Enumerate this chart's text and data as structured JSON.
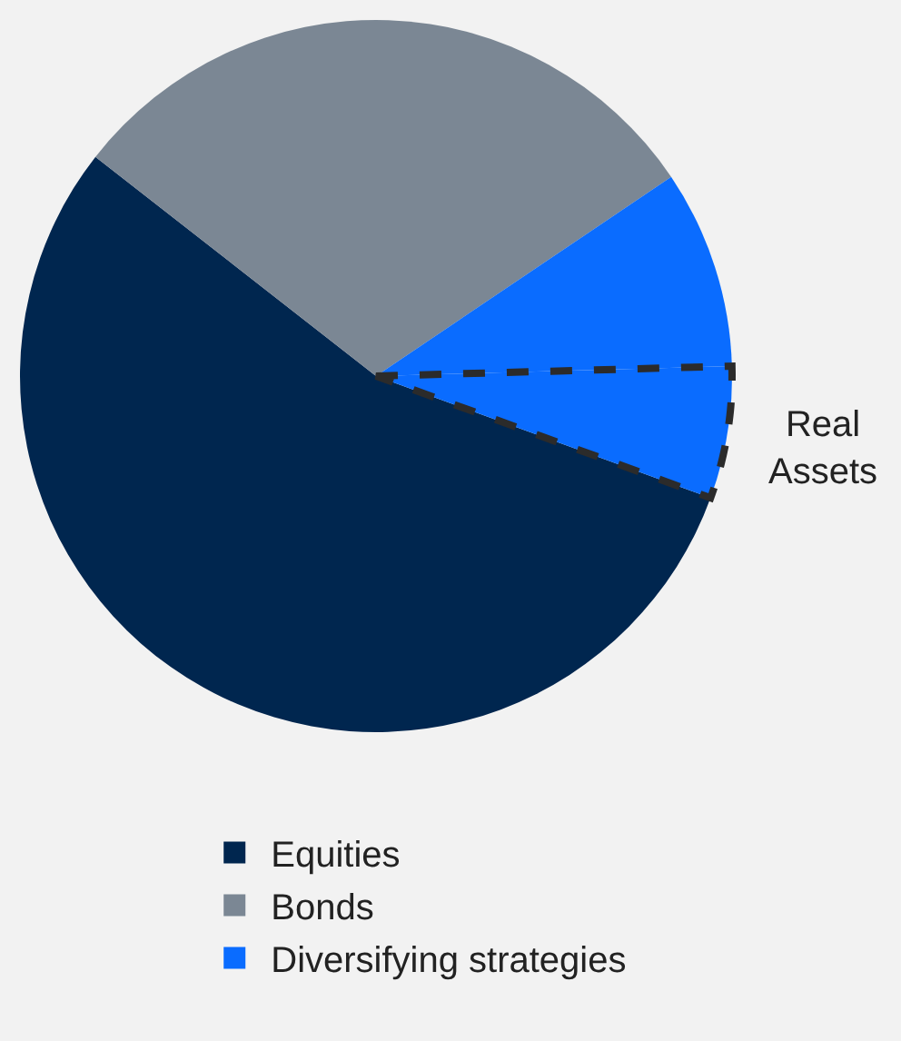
{
  "chart_data": {
    "type": "pie",
    "categories": [
      "Equities",
      "Bonds",
      "Diversifying strategies",
      null
    ],
    "values": [
      55,
      30,
      9,
      6
    ],
    "colors": [
      "#00264f",
      "#7b8794",
      "#0a6cff",
      "#0a6cff"
    ],
    "value_labels": [
      null,
      null,
      null,
      "Real Assets"
    ],
    "legend": "bottom"
  }
}
